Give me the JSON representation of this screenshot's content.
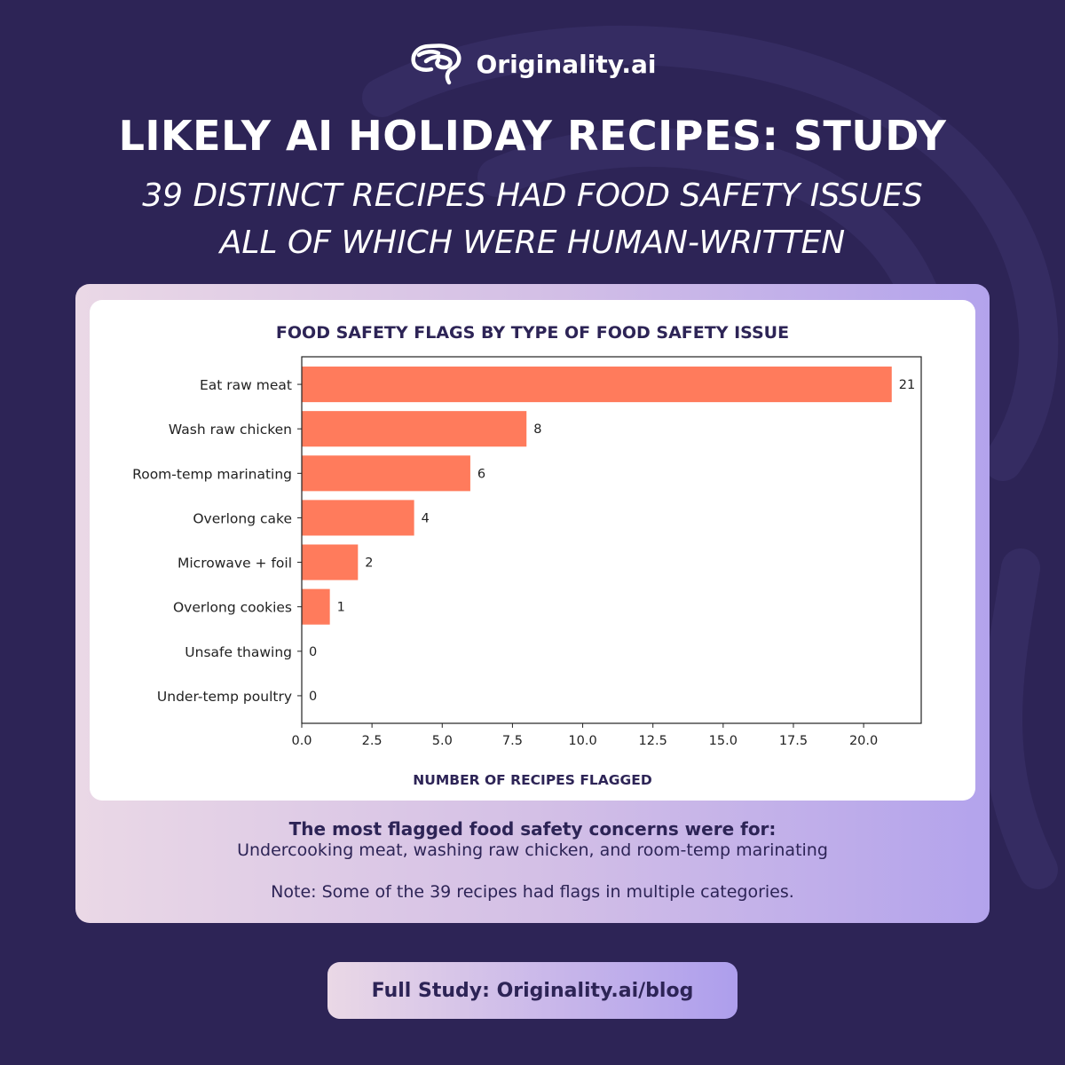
{
  "brand": {
    "name": "Originality.ai",
    "logo_icon": "brain-icon"
  },
  "headline": "LIKELY AI HOLIDAY RECIPES: STUDY",
  "subheadline_line1": "39 DISTINCT RECIPES HAD FOOD SAFETY ISSUES",
  "subheadline_line2": "ALL OF WHICH WERE HUMAN-WRITTEN",
  "colors": {
    "background": "#2d2456",
    "bar": "#ff7b5c",
    "ink": "#2d2456"
  },
  "chart_data": {
    "type": "bar",
    "orientation": "horizontal",
    "title": "FOOD SAFETY FLAGS BY TYPE OF FOOD SAFETY ISSUE",
    "xlabel": "NUMBER OF RECIPES FLAGGED",
    "ylabel": "",
    "categories": [
      "Eat raw meat",
      "Wash raw chicken",
      "Room-temp marinating",
      "Overlong cake",
      "Microwave + foil",
      "Overlong cookies",
      "Unsafe thawing",
      "Under-temp poultry"
    ],
    "values": [
      21,
      8,
      6,
      4,
      2,
      1,
      0,
      0
    ],
    "xlim": [
      0,
      22.05
    ],
    "xticks": [
      "0.0",
      "2.5",
      "5.0",
      "7.5",
      "10.0",
      "12.5",
      "15.0",
      "17.5",
      "20.0"
    ],
    "grid": false,
    "data_labels": true
  },
  "summary": {
    "title": "The most flagged food safety concerns were for:",
    "body": "Undercooking meat, washing raw chicken, and room-temp marinating",
    "note": "Note: Some of the 39 recipes had flags in multiple categories."
  },
  "cta": {
    "label": "Full Study: Originality.ai/blog"
  }
}
